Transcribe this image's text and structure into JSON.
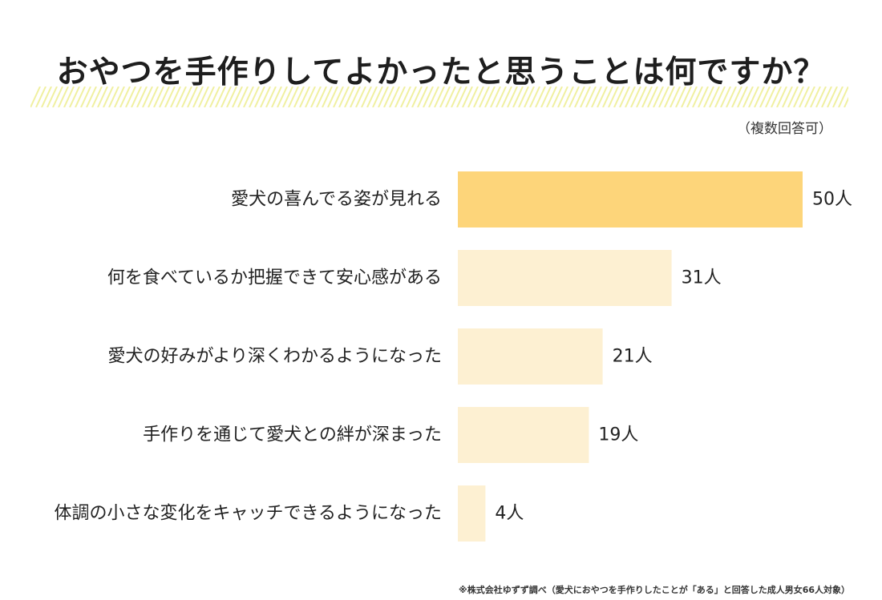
{
  "header": {
    "title": "おやつを手作りしてよかったと思うことは何ですか？",
    "note": "（複数回答可）"
  },
  "footer": {
    "source": "※株式会社ゆずず調べ（愛犬におやつを手作りしたことが「ある」と回答した成人男女66人対象）"
  },
  "chart_data": {
    "type": "bar",
    "orientation": "horizontal",
    "categories": [
      "愛犬の喜んでる姿が見れる",
      "何を食べているか把握できて安心感がある",
      "愛犬の好みがより深くわかるようになった",
      "手作りを通じて愛犬との絆が深まった",
      "体調の小さな変化をキャッチできるようになった"
    ],
    "values": [
      50,
      31,
      21,
      19,
      4
    ],
    "value_labels": [
      "50人",
      "31人",
      "21人",
      "19人",
      "4人"
    ],
    "unit": "人",
    "xlim": [
      0,
      50
    ],
    "grid": false,
    "colors": {
      "highlight": "#fdd57a",
      "bar": "#fdf0d2",
      "stripe": "#f0f0a0"
    }
  }
}
